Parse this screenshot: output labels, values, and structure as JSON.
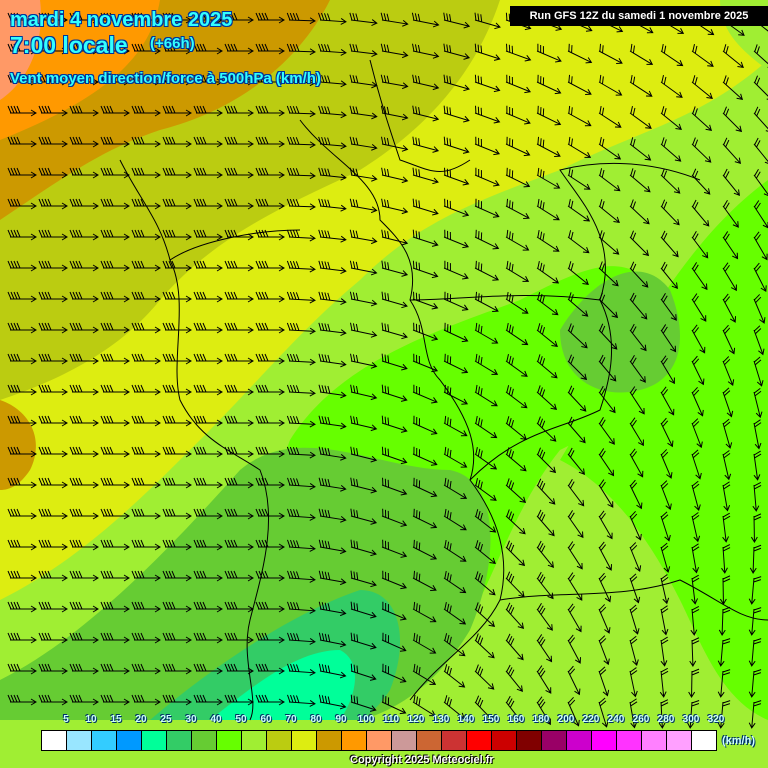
{
  "header": {
    "date": "mardi 4 novembre 2025",
    "time": "7:00 locale",
    "lead": "(+66h)",
    "description": "Vent moyen direction/force à 500hPa (km/h)",
    "run": "Run GFS 12Z du samedi 1 novembre 2025"
  },
  "legend": {
    "labels": [
      "5",
      "10",
      "15",
      "20",
      "25",
      "30",
      "40",
      "50",
      "60",
      "70",
      "80",
      "90",
      "100",
      "110",
      "120",
      "130",
      "140",
      "150",
      "160",
      "180",
      "200",
      "220",
      "240",
      "260",
      "280",
      "300",
      "320"
    ],
    "colors": [
      "#ffffff",
      "#99e6ff",
      "#33ccff",
      "#0099ff",
      "#00ff99",
      "#33cc66",
      "#66cc33",
      "#66ff00",
      "#a0ee33",
      "#bbcc11",
      "#dded11",
      "#cc9900",
      "#ff9900",
      "#ff9966",
      "#cc9999",
      "#cc6633",
      "#cc3333",
      "#ff0000",
      "#cc0000",
      "#800000",
      "#990066",
      "#cc00cc",
      "#ff00ff",
      "#ff33ff",
      "#ff80ff",
      "#ffa0ff",
      "#ffffff"
    ],
    "unit": "(km/h)"
  },
  "footer": {
    "copyright": "Copyright 2025 Meteociel.fr"
  }
}
